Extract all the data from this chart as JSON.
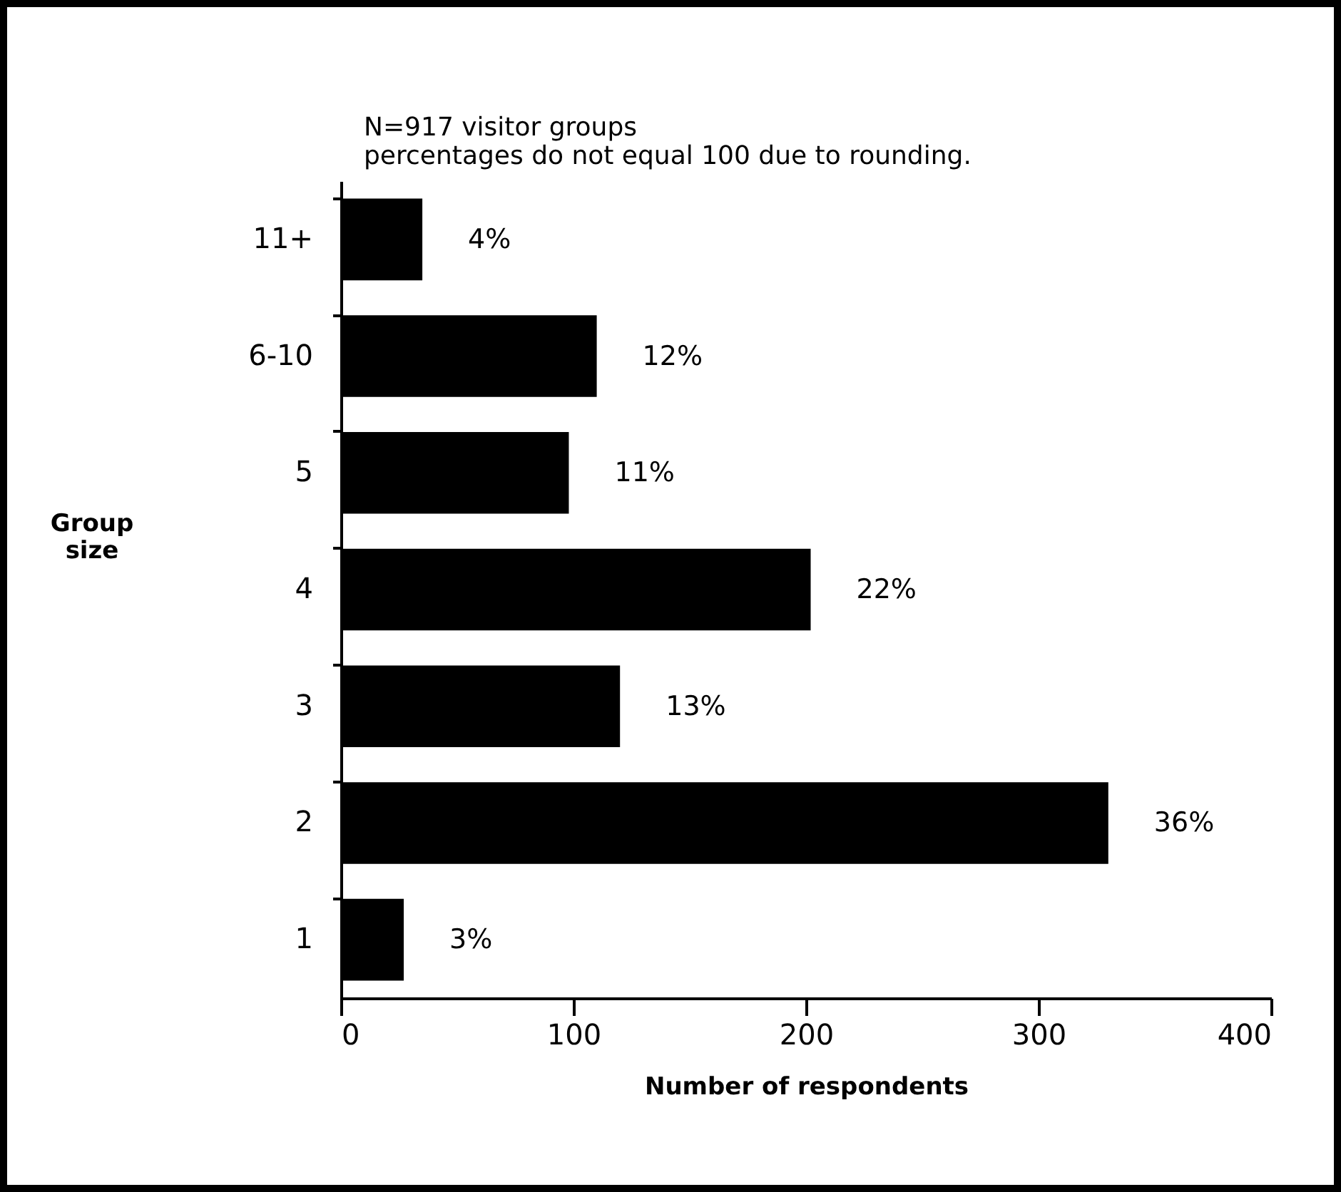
{
  "chart_data": {
    "type": "bar",
    "orientation": "horizontal",
    "title": "N=917 visitor groups",
    "subtitle": "percentages do not equal 100 due to rounding.",
    "xlabel": "Number of respondents",
    "ylabel": "Group size",
    "categories": [
      "11+",
      "6-10",
      "5",
      "4",
      "3",
      "2",
      "1"
    ],
    "values": [
      35,
      110,
      98,
      202,
      120,
      330,
      27
    ],
    "annotations": [
      {
        "text": "4%",
        "x": 35,
        "y": "11+"
      },
      {
        "text": "12%",
        "x": 110,
        "y": "6-10"
      },
      {
        "text": "11%",
        "x": 98,
        "y": "5"
      },
      {
        "text": "22%",
        "x": 202,
        "y": "4"
      },
      {
        "text": "13%",
        "x": 120,
        "y": "3"
      },
      {
        "text": "36%",
        "x": 330,
        "y": "2"
      },
      {
        "text": "3%",
        "x": 27,
        "y": "1"
      }
    ],
    "color": "#000000",
    "xlim": [
      0,
      400
    ],
    "xticks": [
      0,
      100,
      200,
      300,
      400
    ],
    "grid": false
  }
}
